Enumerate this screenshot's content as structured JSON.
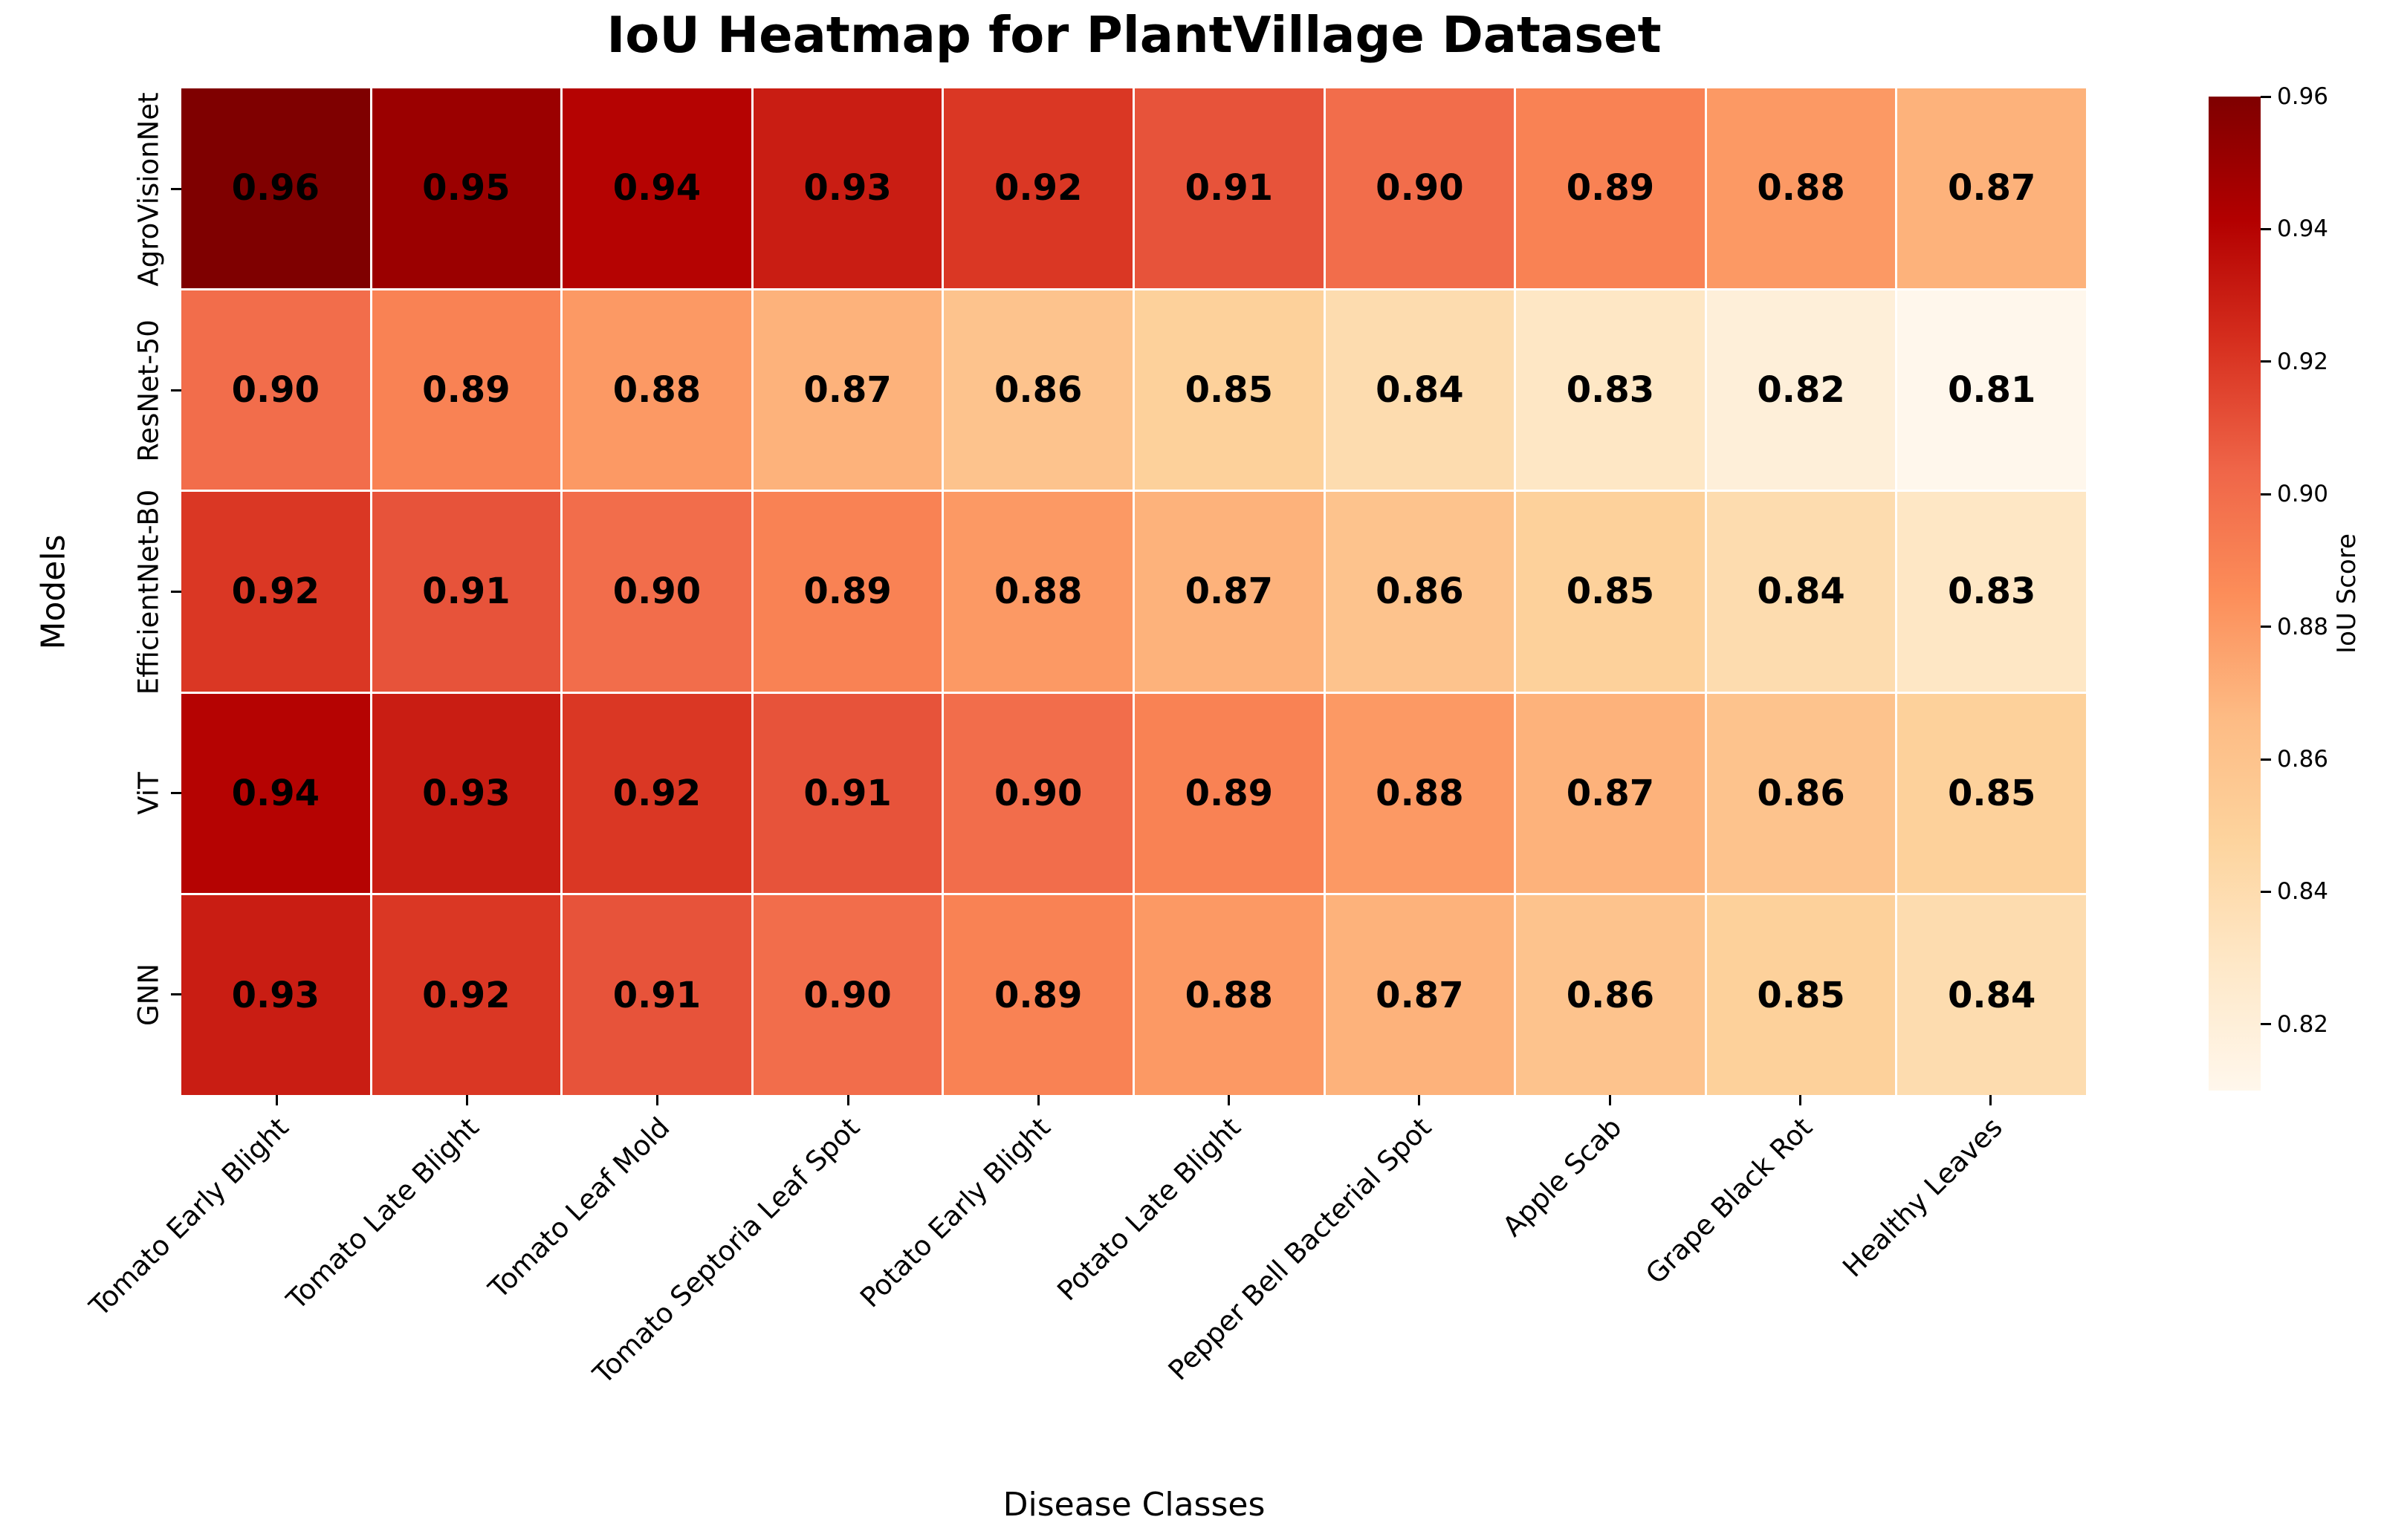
{
  "chart_data": {
    "type": "heatmap",
    "title": "IoU Heatmap for PlantVillage Dataset",
    "xlabel": "Disease Classes",
    "ylabel": "Models",
    "x_categories": [
      "Tomato Early Blight",
      "Tomato Late Blight",
      "Tomato Leaf Mold",
      "Tomato Septoria Leaf Spot",
      "Potato Early Blight",
      "Potato Late Blight",
      "Pepper Bell Bacterial Spot",
      "Apple Scab",
      "Grape Black Rot",
      "Healthy Leaves"
    ],
    "y_categories": [
      "AgroVisionNet",
      "ResNet-50",
      "EfficientNet-B0",
      "ViT",
      "GNN"
    ],
    "values": [
      [
        0.96,
        0.95,
        0.94,
        0.93,
        0.92,
        0.91,
        0.9,
        0.89,
        0.88,
        0.87
      ],
      [
        0.9,
        0.89,
        0.88,
        0.87,
        0.86,
        0.85,
        0.84,
        0.83,
        0.82,
        0.81
      ],
      [
        0.92,
        0.91,
        0.9,
        0.89,
        0.88,
        0.87,
        0.86,
        0.85,
        0.84,
        0.83
      ],
      [
        0.94,
        0.93,
        0.92,
        0.91,
        0.9,
        0.89,
        0.88,
        0.87,
        0.86,
        0.85
      ],
      [
        0.93,
        0.92,
        0.91,
        0.9,
        0.89,
        0.88,
        0.87,
        0.86,
        0.85,
        0.84
      ]
    ],
    "value_format_decimals": 2,
    "vmin": 0.81,
    "vmax": 0.96,
    "colormap": "OrRd",
    "colormap_stops": [
      "#fff7ec",
      "#fee8c8",
      "#fdd49e",
      "#fdbb84",
      "#fc8d59",
      "#ef6548",
      "#d7301f",
      "#b30000",
      "#7f0000"
    ],
    "cell_text_color": "#000000",
    "background_color": "#ffffff",
    "grid_line_color": "#ffffff",
    "colorbar": {
      "label": "IoU Score",
      "ticks": [
        0.96,
        0.94,
        0.92,
        0.9,
        0.88,
        0.86,
        0.84,
        0.82
      ]
    },
    "legend_position": "right-colorbar",
    "x_tick_rotation_deg": 45,
    "y_tick_rotation_deg": 90
  }
}
